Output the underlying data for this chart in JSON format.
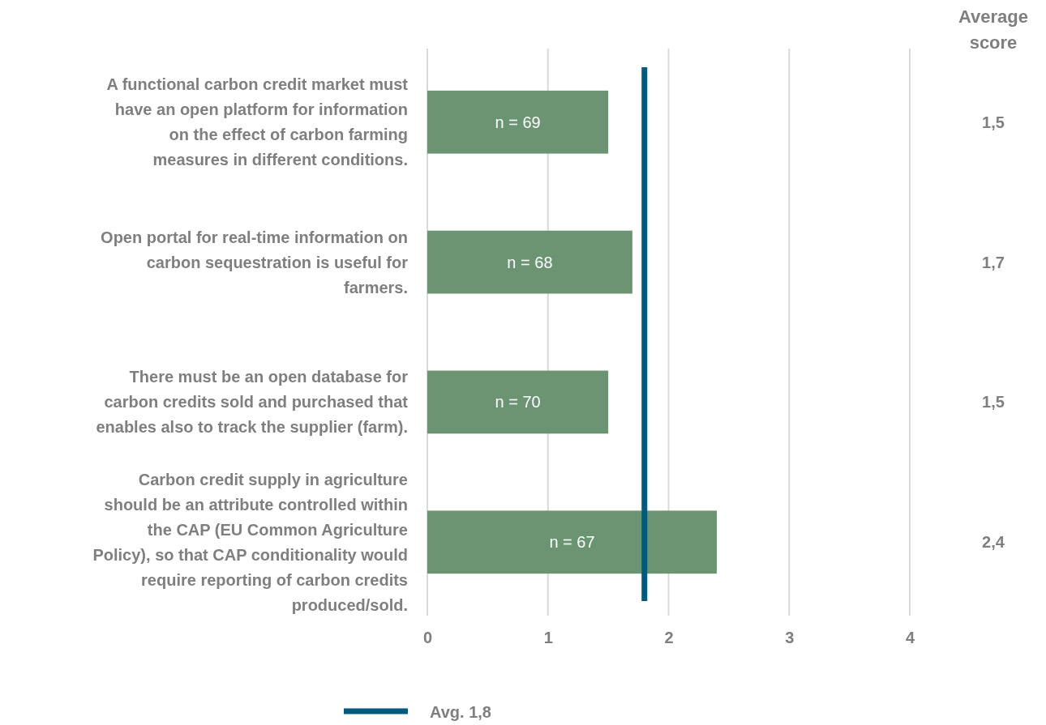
{
  "chart_data": {
    "type": "bar",
    "orientation": "horizontal",
    "categories": [
      "A functional carbon credit market must have an open platform for information on the effect of carbon farming measures in different conditions.",
      "Open portal for real-time information on carbon sequestration is useful for farmers.",
      "There must be an open database for carbon credits sold and purchased that enables also to track the supplier (farm).",
      "Carbon credit supply in agriculture should be an attribute controlled within the CAP (EU Common Agriculture Policy), so that CAP conditionality would require reporting of carbon credits produced/sold."
    ],
    "values": [
      1.5,
      1.7,
      1.5,
      2.4
    ],
    "value_labels": [
      "1,5",
      "1,7",
      "1,5",
      "2,4"
    ],
    "color": "#6a9472",
    "xlim": [
      0,
      4
    ],
    "xticks": [
      0,
      1,
      2,
      3,
      4
    ],
    "grid": "x",
    "legend": "bottom",
    "ref_lines": [
      {
        "axis": "x",
        "value": 1.8,
        "label": "Avg. 1,8",
        "color": "#005a7c"
      }
    ],
    "annotations": [
      "Average score",
      "n = 69",
      "n = 68",
      "n = 70",
      "n = 67"
    ]
  }
}
